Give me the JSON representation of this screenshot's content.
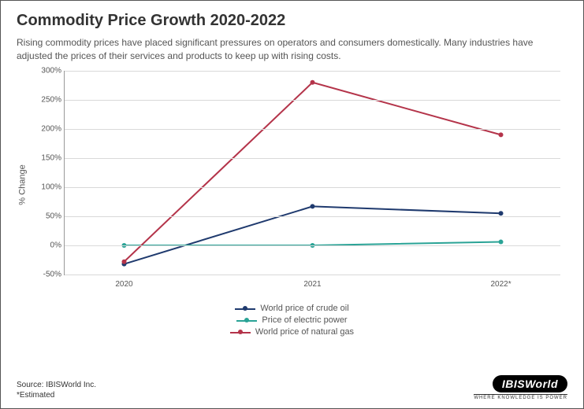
{
  "title": "Commodity Price Growth 2020-2022",
  "subtitle": "Rising commodity prices have placed significant pressures on operators and consumers domestically. Many industries have adjusted the prices of their services and products to keep up with rising costs.",
  "chart": {
    "type": "line",
    "ylabel": "% Change",
    "ylim": [
      -50,
      300
    ],
    "ytick_step": 50,
    "yticks": [
      -50,
      0,
      50,
      100,
      150,
      200,
      250,
      300
    ],
    "ytick_labels": [
      "-50%",
      "0%",
      "50%",
      "100%",
      "150%",
      "200%",
      "250%",
      "300%"
    ],
    "categories": [
      "2020",
      "2021",
      "2022*"
    ],
    "series": [
      {
        "name": "World price of crude oil",
        "color": "#1f3a6e",
        "values": [
          -32,
          67,
          55
        ],
        "line_width": 2,
        "marker": "circle",
        "marker_size": 6
      },
      {
        "name": "Price of electric power",
        "color": "#2aa396",
        "values": [
          0,
          0,
          6
        ],
        "line_width": 2,
        "marker": "circle",
        "marker_size": 6
      },
      {
        "name": "World price of natural gas",
        "color": "#b4344a",
        "values": [
          -28,
          280,
          190
        ],
        "line_width": 2,
        "marker": "circle",
        "marker_size": 6
      }
    ],
    "background_color": "#ffffff",
    "grid_color": "#d9d9d9",
    "axis_color": "#999999",
    "label_fontsize": 11,
    "tick_fontsize": 10
  },
  "source_line1": "Source: IBISWorld Inc.",
  "source_line2": "*Estimated",
  "logo_text": "IBISWorld",
  "logo_tagline": "WHERE KNOWLEDGE IS POWER"
}
